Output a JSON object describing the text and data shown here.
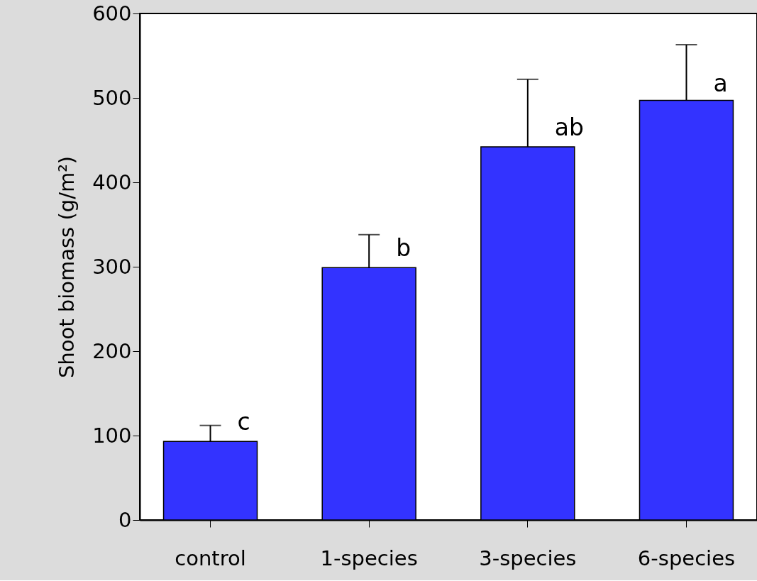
{
  "chart_data": {
    "type": "bar",
    "ylabel": "Shoot biomass (g/m²)",
    "categories": [
      "control",
      "1-species",
      "3-species",
      "6-species"
    ],
    "values": [
      93,
      299,
      442,
      497
    ],
    "errors": [
      [
        93,
        112
      ],
      [
        299,
        338
      ],
      [
        442,
        522
      ],
      [
        497,
        563
      ]
    ],
    "color": "#3333ff",
    "ylim": [
      0,
      600
    ],
    "yticks": [
      0,
      100,
      200,
      300,
      400,
      500,
      600
    ],
    "grid": false,
    "annotations": [
      {
        "text": "c",
        "x": "control",
        "y": 101
      },
      {
        "text": "b",
        "x": "1-species",
        "y": 307
      },
      {
        "text": "ab",
        "x": "3-species",
        "y": 450
      },
      {
        "text": "a",
        "x": "6-species",
        "y": 502
      }
    ]
  }
}
